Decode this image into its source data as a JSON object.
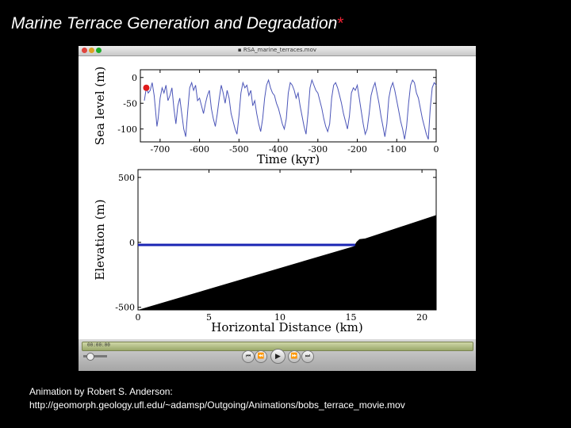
{
  "slide": {
    "title": "Marine Terrace Generation and Degradation",
    "title_marker": "*",
    "credit_line1": "Animation by Robert S. Anderson:",
    "credit_line2": "http://geomorph.geology.ufl.edu/~adamsp/Outgoing/Animations/bobs_terrace_movie.mov"
  },
  "window": {
    "title": "RSA_marine_terraces.mov",
    "close_color": "#e0443e",
    "minimize_color": "#dea123",
    "zoom_color": "#1aab29"
  },
  "player": {
    "timecode": "00:00:00",
    "buttons": [
      {
        "name": "rewind-to-start-button",
        "glyph": "⏮"
      },
      {
        "name": "rewind-button",
        "glyph": "⏪"
      },
      {
        "name": "play-button",
        "glyph": "▶"
      },
      {
        "name": "fast-forward-button",
        "glyph": "⏩"
      },
      {
        "name": "skip-to-end-button",
        "glyph": "⏭"
      }
    ]
  },
  "chart_data": [
    {
      "type": "line",
      "title": "",
      "xlabel": "Time (kyr)",
      "ylabel": "Sea level (m)",
      "xlim": [
        -750,
        0
      ],
      "ylim": [
        -125,
        15
      ],
      "xticks": [
        -700,
        -600,
        -500,
        -400,
        -300,
        -200,
        -100,
        0
      ],
      "yticks": [
        0,
        -50,
        -100
      ],
      "series_color": "#4b55b8",
      "current_marker": {
        "x": -735,
        "y": -20,
        "color": "#e01b1b"
      },
      "series": [
        {
          "x": [
            -740,
            -735,
            -730,
            -725,
            -720,
            -715,
            -712,
            -708,
            -705,
            -700,
            -695,
            -690,
            -685,
            -680,
            -675,
            -670,
            -665,
            -660,
            -655,
            -650,
            -645,
            -640,
            -635,
            -630,
            -625,
            -620,
            -615,
            -610,
            -605,
            -600,
            -595,
            -590,
            -585,
            -580,
            -575,
            -570,
            -565,
            -560,
            -555,
            -550,
            -545,
            -540,
            -535,
            -530,
            -525,
            -520,
            -515,
            -510,
            -505,
            -500,
            -495,
            -490,
            -485,
            -480,
            -475,
            -470,
            -465,
            -460,
            -455,
            -450,
            -445,
            -440,
            -435,
            -430,
            -425,
            -420,
            -415,
            -410,
            -405,
            -400,
            -395,
            -390,
            -385,
            -380,
            -375,
            -370,
            -365,
            -360,
            -355,
            -350,
            -345,
            -340,
            -335,
            -330,
            -325,
            -320,
            -315,
            -310,
            -305,
            -300,
            -295,
            -290,
            -285,
            -280,
            -275,
            -270,
            -265,
            -260,
            -255,
            -250,
            -245,
            -240,
            -235,
            -230,
            -225,
            -220,
            -215,
            -210,
            -205,
            -200,
            -195,
            -190,
            -185,
            -180,
            -175,
            -170,
            -165,
            -160,
            -155,
            -150,
            -145,
            -140,
            -135,
            -130,
            -125,
            -120,
            -115,
            -110,
            -105,
            -100,
            -95,
            -90,
            -85,
            -80,
            -75,
            -70,
            -65,
            -60,
            -55,
            -50,
            -45,
            -40,
            -35,
            -30,
            -25,
            -20,
            -15,
            -10,
            -5,
            0
          ],
          "y": [
            -45,
            -20,
            -30,
            -25,
            -10,
            -35,
            -60,
            -95,
            -80,
            -40,
            -20,
            -30,
            -15,
            -45,
            -35,
            -20,
            -60,
            -90,
            -55,
            -40,
            -70,
            -100,
            -115,
            -65,
            -20,
            -10,
            -25,
            -15,
            -45,
            -40,
            -55,
            -70,
            -50,
            -35,
            -25,
            -60,
            -80,
            -95,
            -70,
            -40,
            -15,
            -30,
            -50,
            -25,
            -40,
            -70,
            -85,
            -100,
            -110,
            -75,
            -30,
            -10,
            -20,
            -15,
            -35,
            -25,
            -55,
            -45,
            -70,
            -90,
            -105,
            -80,
            -40,
            -15,
            -5,
            -20,
            -30,
            -35,
            -50,
            -60,
            -75,
            -90,
            -100,
            -80,
            -30,
            -10,
            -15,
            -25,
            -40,
            -30,
            -55,
            -75,
            -95,
            -110,
            -70,
            -20,
            -5,
            -15,
            -25,
            -30,
            -45,
            -60,
            -80,
            -95,
            -105,
            -90,
            -40,
            -15,
            -10,
            -20,
            -35,
            -50,
            -70,
            -85,
            -100,
            -75,
            -30,
            -20,
            -25,
            -15,
            -40,
            -65,
            -90,
            -110,
            -100,
            -70,
            -35,
            -20,
            -10,
            -30,
            -50,
            -75,
            -95,
            -115,
            -90,
            -40,
            -20,
            -10,
            -25,
            -45,
            -65,
            -85,
            -100,
            -120,
            -95,
            -50,
            -15,
            -5,
            -10,
            -30,
            -40,
            -60,
            -80,
            -95,
            -110,
            -120,
            -60,
            -20,
            -10,
            -15
          ]
        }
      ]
    },
    {
      "type": "area",
      "title": "",
      "xlabel": "Horizontal Distance (km)",
      "ylabel": "Elevation (m)",
      "xlim": [
        0,
        21
      ],
      "ylim": [
        -520,
        560
      ],
      "xticks": [
        0,
        5,
        10,
        15,
        20
      ],
      "yticks": [
        500,
        0,
        -500
      ],
      "topography": {
        "name": "",
        "color": "#000000",
        "x": [
          0,
          15.2,
          15.4,
          15.6,
          16,
          21
        ],
        "y": [
          -520,
          -30,
          5,
          25,
          30,
          210
        ]
      },
      "sea_level": {
        "name": "",
        "color": "#1a24b4",
        "y": -20,
        "x_end": 15.3
      }
    }
  ]
}
